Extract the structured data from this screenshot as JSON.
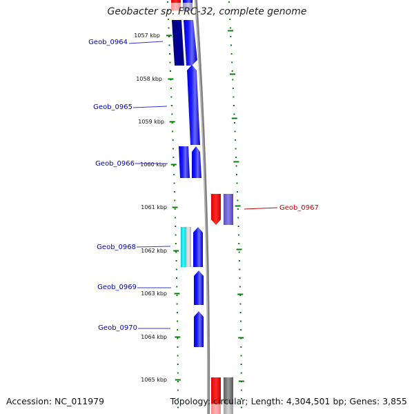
{
  "title": "Geobacter sp. FRC-32, complete genome",
  "accession": "Accession: NC_011979",
  "summary": "Topology: circular; Length: 4,304,501 bp; Genes: 3,855",
  "colors": {
    "scale_ticks": "#008000",
    "backbone": "#808080",
    "gene_blue": "#0000ee",
    "gene_navy": "#000080",
    "gene_red": "#ee0000",
    "gene_purple": "#6a5acd",
    "gene_cyan": "#00e5ee",
    "gene_gray": "#888888",
    "label_blue": "#0000bb",
    "label_red": "#cc0000"
  },
  "scale": {
    "unit": "kbp",
    "labels": [
      "1057 kbp",
      "1058 kbp",
      "1059 kbp",
      "1060 kbp",
      "1061 kbp",
      "1062 kbp",
      "1063 kbp",
      "1064 kbp",
      "1065 kbp"
    ]
  },
  "gene_labels": [
    {
      "name": "Geob_0964",
      "strand": "forward"
    },
    {
      "name": "Geob_0965",
      "strand": "forward"
    },
    {
      "name": "Geob_0966",
      "strand": "forward"
    },
    {
      "name": "Geob_0967",
      "strand": "reverse"
    },
    {
      "name": "Geob_0968",
      "strand": "forward"
    },
    {
      "name": "Geob_0969",
      "strand": "forward"
    },
    {
      "name": "Geob_0970",
      "strand": "forward"
    }
  ]
}
